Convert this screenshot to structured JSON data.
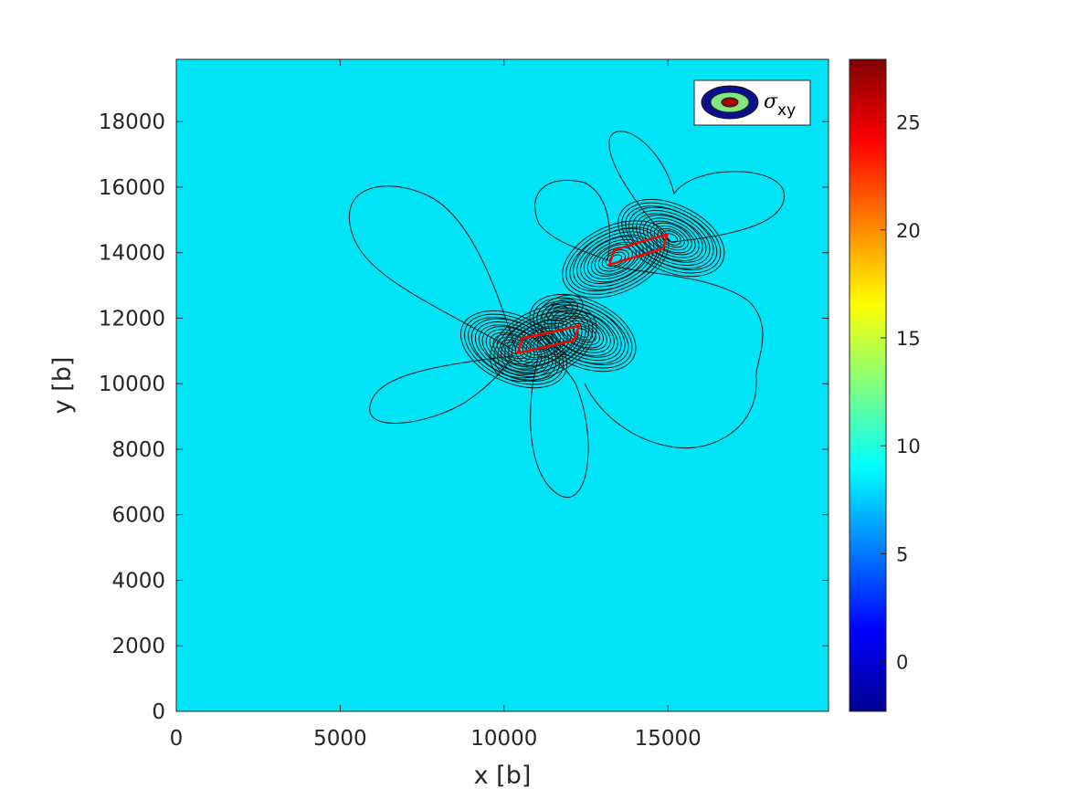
{
  "chart_data": {
    "type": "contour",
    "title": "",
    "xlabel": "x [b]",
    "ylabel": "y [b]",
    "xlim": [
      0,
      19900
    ],
    "ylim": [
      0,
      19900
    ],
    "xticks": [
      0,
      5000,
      10000,
      15000
    ],
    "yticks": [
      0,
      2000,
      4000,
      6000,
      8000,
      10000,
      12000,
      14000,
      16000,
      18000
    ],
    "background_color": "#00e4f7",
    "contour_color": "#1a1a1a",
    "colorbar": {
      "colormap": "jet",
      "range": [
        -2.3,
        27.9
      ],
      "ticks": [
        0,
        5,
        10,
        15,
        20,
        25
      ]
    },
    "legend": {
      "position": "top-right",
      "label_symbol": "σ",
      "label_subscript": "xy"
    },
    "segments": [
      {
        "from": [
          10500,
          11100
        ],
        "to": [
          12200,
          11600
        ],
        "color": "#ff0000"
      },
      {
        "from": [
          13300,
          13800
        ],
        "to": [
          14900,
          14400
        ],
        "color": "#ff0000"
      }
    ],
    "stress_centers": [
      [
        10300,
        11050
      ],
      [
        11200,
        11250
      ],
      [
        12400,
        11550
      ],
      [
        13400,
        13800
      ],
      [
        15100,
        14450
      ],
      [
        11700,
        12200
      ]
    ]
  }
}
